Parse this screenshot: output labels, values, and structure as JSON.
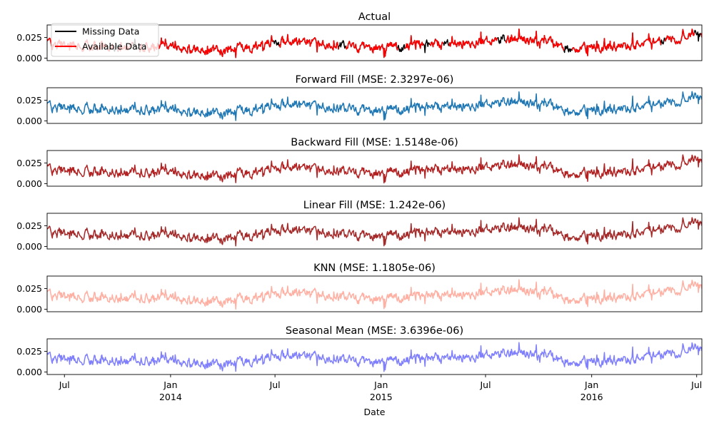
{
  "chart_data": {
    "type": "line",
    "xlabel": "Date",
    "x_range": [
      "2013-06-01",
      "2016-07-10"
    ],
    "x_ticks": [
      {
        "date": "2013-07-01",
        "label": "Jul",
        "sublabel": ""
      },
      {
        "date": "2014-01-01",
        "label": "Jan",
        "sublabel": "2014"
      },
      {
        "date": "2014-07-01",
        "label": "Jul",
        "sublabel": ""
      },
      {
        "date": "2015-01-01",
        "label": "Jan",
        "sublabel": "2015"
      },
      {
        "date": "2015-07-01",
        "label": "Jul",
        "sublabel": ""
      },
      {
        "date": "2016-01-01",
        "label": "Jan",
        "sublabel": "2016"
      },
      {
        "date": "2016-07-01",
        "label": "Jul",
        "sublabel": ""
      }
    ],
    "y_ticks": [
      {
        "value": 0.0,
        "label": "0.000"
      },
      {
        "value": 0.025,
        "label": "0.025"
      }
    ],
    "ylim": [
      -0.003,
      0.04
    ],
    "legend": {
      "placement": "upper-left",
      "entries": [
        {
          "label": "Missing Data",
          "color": "#000000"
        },
        {
          "label": "Available Data",
          "color": "#ff0000"
        }
      ]
    },
    "trend": [
      [
        "2013-06-01",
        0.017
      ],
      [
        "2013-10-01",
        0.014
      ],
      [
        "2014-01-01",
        0.012
      ],
      [
        "2014-03-01",
        0.01
      ],
      [
        "2014-04-10",
        0.008
      ],
      [
        "2014-07-01",
        0.02
      ],
      [
        "2014-10-01",
        0.016
      ],
      [
        "2014-12-01",
        0.012
      ],
      [
        "2015-03-01",
        0.015
      ],
      [
        "2015-06-01",
        0.018
      ],
      [
        "2015-08-01",
        0.024
      ],
      [
        "2015-10-15",
        0.019
      ],
      [
        "2015-12-01",
        0.012
      ],
      [
        "2016-03-01",
        0.015
      ],
      [
        "2016-07-10",
        0.028
      ]
    ],
    "subplots": [
      {
        "title": "Actual",
        "color": "#ff0000",
        "missing_color": "#000000",
        "show_legend": true
      },
      {
        "title": "Forward Fill (MSE: 2.3297e-06)",
        "color": "#1f77b4"
      },
      {
        "title": "Backward Fill (MSE: 1.5148e-06)",
        "color": "#b22222"
      },
      {
        "title": "Linear Fill (MSE: 1.242e-06)",
        "color": "#a52a2a"
      },
      {
        "title": "KNN (MSE: 1.1805e-06)",
        "color": "#ffb0a3"
      },
      {
        "title": "Seasonal Mean (MSE: 3.6396e-06)",
        "color": "#8080ff"
      }
    ]
  }
}
